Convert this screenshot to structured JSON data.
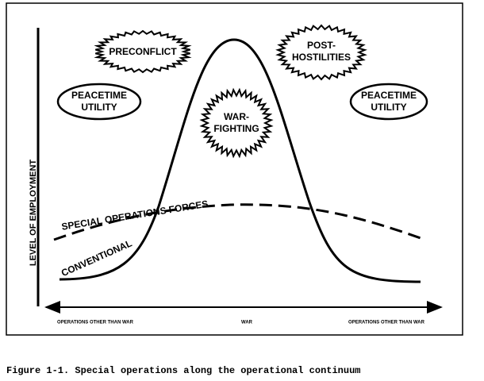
{
  "figure": {
    "y_axis_label": "LEVEL OF EMPLOYMENT",
    "x_labels": [
      "OPERATIONS OTHER THAN WAR",
      "WAR",
      "OPERATIONS OTHER THAN WAR"
    ],
    "preconflict": "PRECONFLICT",
    "post_hostilities": [
      "POST-",
      "HOSTILITIES"
    ],
    "peacetime_left": [
      "PEACETIME",
      "UTILITY"
    ],
    "peacetime_right": [
      "PEACETIME",
      "UTILITY"
    ],
    "war_fighting": [
      "WAR-",
      "FIGHTING"
    ],
    "sof_label": "SPECIAL OPERATIONS FORCES",
    "conventional_label": "CONVENTIONAL",
    "caption": "Figure 1-1.  Special operations along the operational continuum"
  }
}
